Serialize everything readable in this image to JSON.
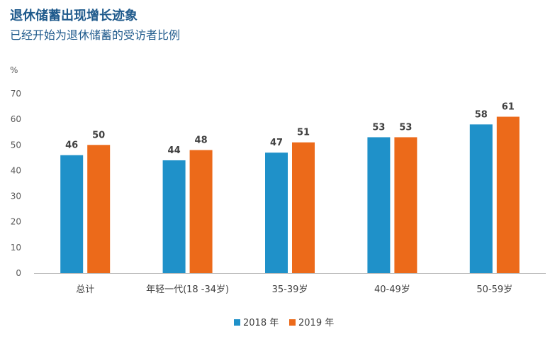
{
  "chart_data": {
    "type": "bar",
    "title": "退休储蓄出现增长迹象",
    "subtitle": "已经开始为退休储蓄的受访者比例",
    "ylabel": "%",
    "ylim": [
      0,
      70
    ],
    "yticks": [
      0,
      10,
      20,
      30,
      40,
      50,
      60,
      70
    ],
    "grid": false,
    "legend": "bottom-center",
    "categories": [
      "总计",
      "年轻一代(18 -34岁)",
      "35-39岁",
      "40-49岁",
      "50-59岁"
    ],
    "series": [
      {
        "name": "2018 年",
        "color": "#1f91c9",
        "values": [
          46,
          44,
          47,
          53,
          58
        ]
      },
      {
        "name": "2019 年",
        "color": "#ec6a1a",
        "values": [
          50,
          48,
          51,
          53,
          61
        ]
      }
    ]
  }
}
